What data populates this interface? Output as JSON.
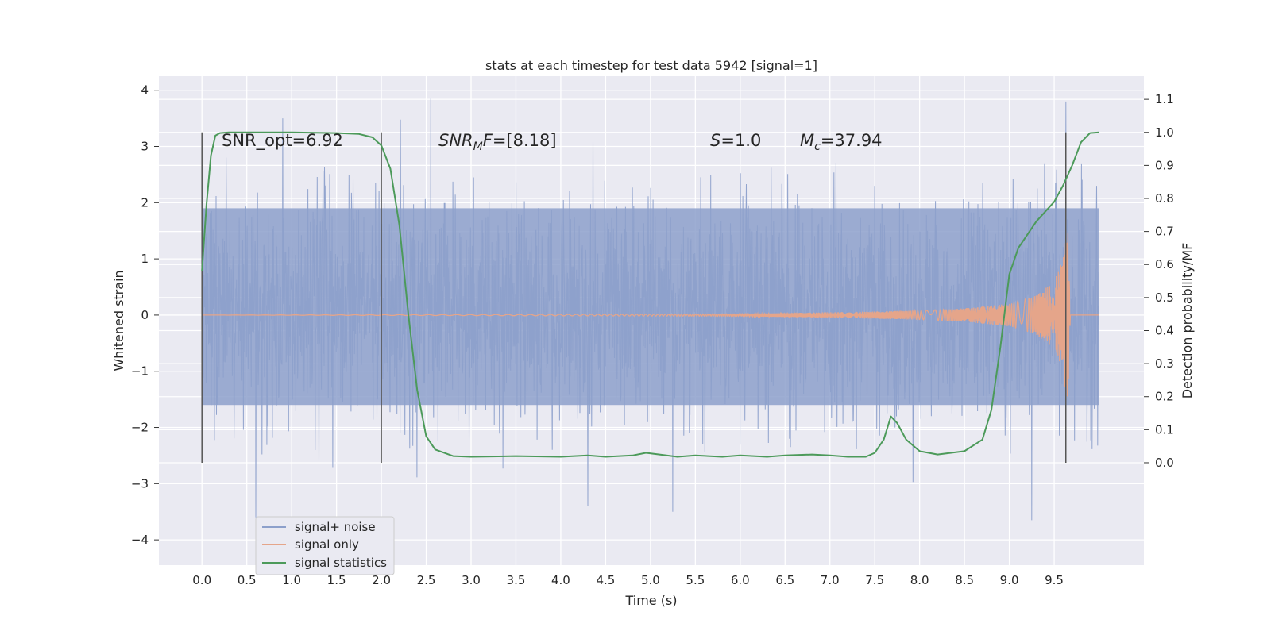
{
  "chart_data": {
    "type": "line",
    "title": "stats at each timestep for test data 5942 [signal=1]",
    "xlabel": "Time (s)",
    "ylabel": "Whitened strain",
    "y2label": "Detection probability/MF",
    "xlim": [
      -0.48,
      10.5
    ],
    "ylim": [
      -4.45,
      4.25
    ],
    "y2lim": [
      -0.31,
      1.17
    ],
    "x_ticks": [
      "0.0",
      "0.5",
      "1.0",
      "1.5",
      "2.0",
      "2.5",
      "3.0",
      "3.5",
      "4.0",
      "4.5",
      "5.0",
      "5.5",
      "6.0",
      "6.5",
      "7.0",
      "7.5",
      "8.0",
      "8.5",
      "9.0",
      "9.5"
    ],
    "y_ticks": [
      "−4",
      "−3",
      "−2",
      "−1",
      "0",
      "1",
      "2",
      "3",
      "4"
    ],
    "y2_ticks": [
      "0.0",
      "0.1",
      "0.2",
      "0.3",
      "0.4",
      "0.5",
      "0.6",
      "0.7",
      "0.8",
      "0.9",
      "1.0",
      "1.1"
    ],
    "grid": true,
    "legend_position": "lower-left",
    "annotations": {
      "snr_opt": "SNR_opt=6.92",
      "snr_mf_main": "SNR",
      "snr_mf_sub": "M",
      "snr_mf_rest": "F",
      "snr_mf_value": "=[8.18]",
      "s_symbol": "S",
      "s_value": "=1.0",
      "mc_symbol": "M",
      "mc_sub": "c",
      "mc_value": "=37.94"
    },
    "vertical_lines_x": [
      0.0,
      2.0,
      9.63
    ],
    "series": [
      {
        "name": "signal+ noise",
        "color": "#8da0cb",
        "x_range": [
          0.0,
          10.0
        ],
        "envelope_core": [
          -1.6,
          1.9
        ],
        "peaks_x": [
          0.9,
          2.55,
          7.5,
          9.63
        ],
        "peaks_y": [
          3.5,
          3.85,
          2.3,
          3.8
        ],
        "troughs_x": [
          0.6,
          4.3,
          5.25,
          9.25
        ],
        "troughs_y": [
          -3.6,
          -3.4,
          -3.5,
          -3.65
        ]
      },
      {
        "name": "signal only",
        "color": "#e5a58a",
        "x": [
          0.0,
          6.0,
          7.0,
          8.0,
          8.5,
          9.0,
          9.3,
          9.5,
          9.6,
          9.65,
          9.68,
          10.0
        ],
        "amplitude": [
          0.0,
          0.02,
          0.05,
          0.08,
          0.12,
          0.2,
          0.35,
          0.6,
          1.0,
          1.7,
          0.0,
          0.0
        ]
      },
      {
        "name": "signal statistics",
        "color": "#4c9a5a",
        "x": [
          0.0,
          0.05,
          0.1,
          0.15,
          0.2,
          0.3,
          0.5,
          1.0,
          1.5,
          1.75,
          1.9,
          2.0,
          2.1,
          2.2,
          2.3,
          2.4,
          2.5,
          2.6,
          2.8,
          3.0,
          3.5,
          4.0,
          4.3,
          4.5,
          4.8,
          4.95,
          5.1,
          5.3,
          5.5,
          5.8,
          6.0,
          6.3,
          6.5,
          6.8,
          7.0,
          7.2,
          7.4,
          7.5,
          7.6,
          7.68,
          7.75,
          7.85,
          8.0,
          8.2,
          8.5,
          8.7,
          8.8,
          8.9,
          9.0,
          9.1,
          9.3,
          9.5,
          9.6,
          9.7,
          9.8,
          9.9,
          10.0
        ],
        "y": [
          0.58,
          0.78,
          0.93,
          0.99,
          0.998,
          1.0,
          1.0,
          1.0,
          0.998,
          0.995,
          0.985,
          0.96,
          0.89,
          0.72,
          0.45,
          0.22,
          0.08,
          0.04,
          0.02,
          0.018,
          0.02,
          0.018,
          0.022,
          0.018,
          0.022,
          0.03,
          0.025,
          0.018,
          0.022,
          0.018,
          0.022,
          0.018,
          0.022,
          0.025,
          0.022,
          0.018,
          0.018,
          0.03,
          0.07,
          0.14,
          0.12,
          0.07,
          0.035,
          0.025,
          0.035,
          0.07,
          0.16,
          0.35,
          0.57,
          0.65,
          0.73,
          0.79,
          0.84,
          0.9,
          0.97,
          0.998,
          1.0
        ]
      }
    ]
  }
}
